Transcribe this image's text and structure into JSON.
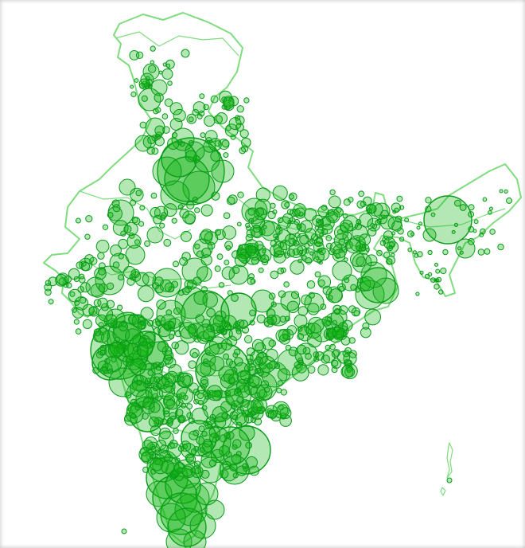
{
  "map": {
    "type": "proportional-symbol-map",
    "region": "India",
    "symbol": "circle",
    "colors": {
      "background": "#ffffff",
      "outline": "#7fdc7f",
      "circle_fill": "rgba(20,180,20,0.32)",
      "circle_stroke": "#0a9a1a"
    }
  }
}
